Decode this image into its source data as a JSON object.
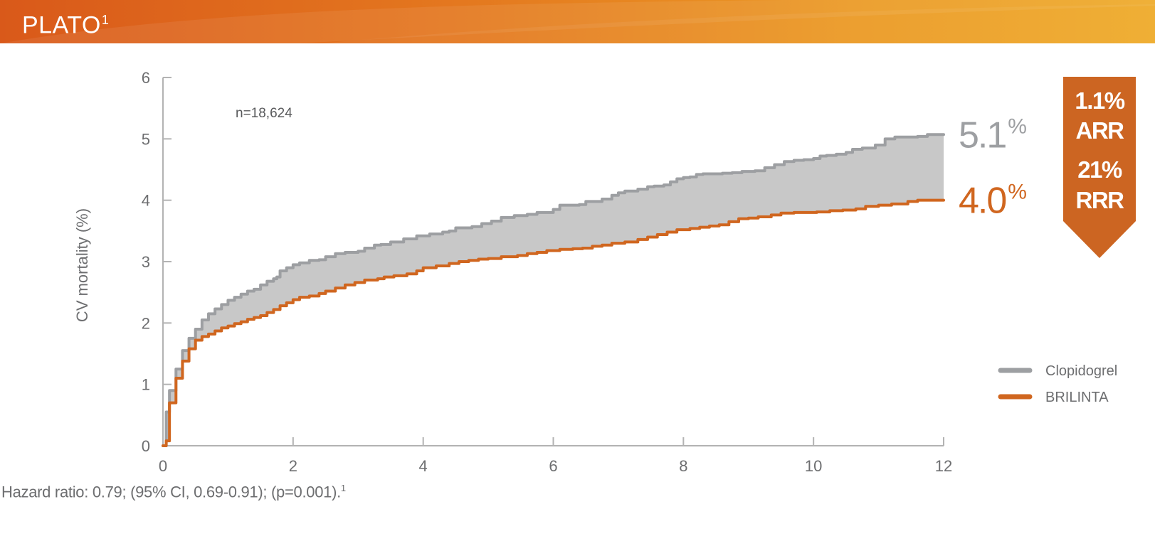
{
  "banner": {
    "title": "PLATO",
    "title_superscript": "1"
  },
  "footnote": {
    "text": "Hazard ratio: 0.79; (95% CI, 0.69-0.91); (p=0.001).",
    "superscript": "1"
  },
  "stat_box": {
    "line1": "1.1%",
    "line2": "ARR",
    "line3": "21%",
    "line4": "RRR",
    "color": "#cc6522"
  },
  "colors": {
    "banner_start": "#d9591a",
    "banner_end": "#eeaa29",
    "clopidogrel": "#9d9fa2",
    "brilinta": "#d0661f",
    "band_fill": "#c8c8c8",
    "axis": "#b3b3b3",
    "text_gray": "#6d6e70"
  },
  "chart_data": {
    "type": "line",
    "title": "",
    "xlabel": "",
    "ylabel": "CV mortality (%)",
    "xlim": [
      0,
      12
    ],
    "ylim": [
      0,
      6
    ],
    "x_ticks": [
      0,
      2,
      4,
      6,
      8,
      10,
      12
    ],
    "y_ticks": [
      0,
      1,
      2,
      3,
      4,
      5,
      6
    ],
    "annotation": "n=18,624",
    "legend_position": "right",
    "fill_between_series": true,
    "series": [
      {
        "name": "Clopidogrel",
        "color": "#9d9fa2",
        "end_label_value": "5.1",
        "end_label_unit": "%",
        "x": [
          0,
          0.05,
          0.1,
          0.2,
          0.3,
          0.4,
          0.5,
          0.6,
          0.7,
          0.8,
          0.9,
          1.0,
          1.1,
          1.2,
          1.3,
          1.4,
          1.5,
          1.6,
          1.7,
          1.75,
          1.8,
          1.9,
          2.0,
          2.1,
          2.25,
          2.4,
          2.5,
          2.65,
          2.8,
          3.0,
          3.1,
          3.25,
          3.35,
          3.5,
          3.7,
          3.9,
          4.1,
          4.3,
          4.4,
          4.5,
          4.6,
          4.75,
          4.9,
          5.05,
          5.2,
          5.4,
          5.6,
          5.75,
          5.85,
          6.0,
          6.1,
          6.2,
          6.4,
          6.5,
          6.6,
          6.75,
          6.9,
          7.0,
          7.1,
          7.3,
          7.45,
          7.55,
          7.7,
          7.8,
          7.9,
          8.0,
          8.1,
          8.2,
          8.3,
          8.45,
          8.6,
          8.75,
          8.9,
          9.1,
          9.25,
          9.4,
          9.55,
          9.7,
          9.85,
          10.0,
          10.1,
          10.2,
          10.35,
          10.5,
          10.6,
          10.75,
          10.85,
          10.95,
          11.1,
          11.25,
          11.45,
          11.6,
          11.75,
          12.0
        ],
        "y": [
          0.0,
          0.55,
          0.9,
          1.25,
          1.55,
          1.75,
          1.9,
          2.05,
          2.15,
          2.23,
          2.3,
          2.37,
          2.42,
          2.47,
          2.52,
          2.55,
          2.62,
          2.68,
          2.72,
          2.75,
          2.85,
          2.9,
          2.95,
          2.98,
          3.02,
          3.03,
          3.08,
          3.13,
          3.15,
          3.17,
          3.22,
          3.27,
          3.28,
          3.32,
          3.37,
          3.42,
          3.45,
          3.48,
          3.5,
          3.55,
          3.55,
          3.57,
          3.62,
          3.66,
          3.72,
          3.75,
          3.77,
          3.8,
          3.8,
          3.85,
          3.92,
          3.92,
          3.93,
          3.98,
          3.98,
          4.02,
          4.08,
          4.12,
          4.15,
          4.18,
          4.22,
          4.23,
          4.25,
          4.3,
          4.35,
          4.37,
          4.38,
          4.42,
          4.43,
          4.43,
          4.44,
          4.45,
          4.47,
          4.48,
          4.53,
          4.58,
          4.63,
          4.65,
          4.66,
          4.68,
          4.72,
          4.73,
          4.75,
          4.78,
          4.83,
          4.85,
          4.85,
          4.9,
          5.0,
          5.03,
          5.03,
          5.04,
          5.07,
          5.07
        ]
      },
      {
        "name": "BRILINTA",
        "color": "#d0661f",
        "end_label_value": "4.0",
        "end_label_unit": "%",
        "x": [
          0,
          0.05,
          0.1,
          0.2,
          0.3,
          0.4,
          0.5,
          0.6,
          0.7,
          0.8,
          0.9,
          1.0,
          1.1,
          1.2,
          1.3,
          1.4,
          1.5,
          1.6,
          1.7,
          1.8,
          1.9,
          2.0,
          2.1,
          2.25,
          2.4,
          2.5,
          2.65,
          2.8,
          2.95,
          3.1,
          3.3,
          3.4,
          3.55,
          3.75,
          3.9,
          4.0,
          4.2,
          4.4,
          4.55,
          4.7,
          4.85,
          5.0,
          5.2,
          5.45,
          5.6,
          5.75,
          5.9,
          6.1,
          6.3,
          6.45,
          6.6,
          6.75,
          6.9,
          7.1,
          7.3,
          7.45,
          7.6,
          7.75,
          7.9,
          8.1,
          8.25,
          8.4,
          8.55,
          8.7,
          8.85,
          9.0,
          9.15,
          9.35,
          9.5,
          9.7,
          9.9,
          10.05,
          10.25,
          10.45,
          10.65,
          10.8,
          11.0,
          11.2,
          11.45,
          11.6,
          11.75,
          12.0
        ],
        "y": [
          0.0,
          0.08,
          0.7,
          1.1,
          1.38,
          1.58,
          1.72,
          1.78,
          1.82,
          1.87,
          1.92,
          1.95,
          1.99,
          2.02,
          2.06,
          2.09,
          2.12,
          2.17,
          2.22,
          2.28,
          2.33,
          2.38,
          2.42,
          2.44,
          2.48,
          2.52,
          2.57,
          2.62,
          2.66,
          2.7,
          2.72,
          2.75,
          2.77,
          2.8,
          2.85,
          2.9,
          2.93,
          2.97,
          3.0,
          3.02,
          3.04,
          3.05,
          3.08,
          3.1,
          3.13,
          3.15,
          3.18,
          3.2,
          3.21,
          3.22,
          3.25,
          3.27,
          3.3,
          3.32,
          3.36,
          3.4,
          3.44,
          3.48,
          3.52,
          3.54,
          3.56,
          3.58,
          3.6,
          3.65,
          3.7,
          3.71,
          3.73,
          3.76,
          3.79,
          3.8,
          3.8,
          3.81,
          3.83,
          3.84,
          3.86,
          3.9,
          3.92,
          3.94,
          3.98,
          4.0,
          4.0,
          4.0
        ]
      }
    ]
  }
}
